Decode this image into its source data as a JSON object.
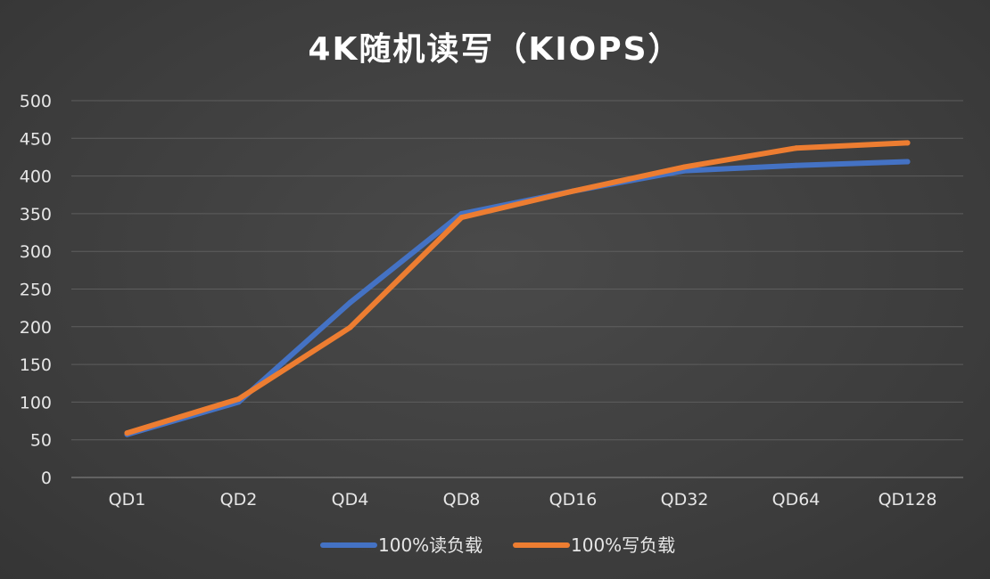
{
  "chart_data": {
    "type": "line",
    "title": "4K随机读写（KIOPS）",
    "xlabel": "",
    "ylabel": "",
    "categories": [
      "QD1",
      "QD2",
      "QD4",
      "QD8",
      "QD16",
      "QD32",
      "QD64",
      "QD128"
    ],
    "series": [
      {
        "name": "100%读负载",
        "color": "#4472C4",
        "values": [
          57,
          100,
          232,
          350,
          380,
          407,
          414,
          419
        ]
      },
      {
        "name": "100%写负载",
        "color": "#ED7D31",
        "values": [
          59,
          104,
          199,
          345,
          380,
          412,
          437,
          444
        ]
      }
    ],
    "ylim": [
      0,
      500
    ],
    "yticks": [
      0,
      50,
      100,
      150,
      200,
      250,
      300,
      350,
      400,
      450,
      500
    ],
    "grid": true,
    "legend": "bottom-center"
  }
}
